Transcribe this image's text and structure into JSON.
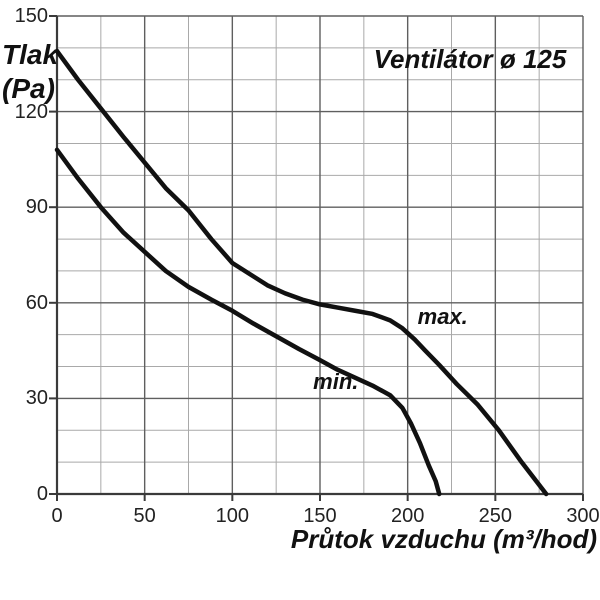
{
  "chart_data": {
    "type": "line",
    "title": "Ventilátor ø 125",
    "ylabel_line1": "Tlak",
    "ylabel_line2": "(Pa)",
    "xlabel": "Průtok vzduchu (m³/hod)",
    "xlim": [
      0,
      300
    ],
    "ylim": [
      0,
      150
    ],
    "xticks": [
      0,
      50,
      100,
      150,
      200,
      250,
      300
    ],
    "yticks": [
      0,
      30,
      60,
      90,
      120,
      150
    ],
    "x_minor_step": 25,
    "y_minor_step": 10,
    "grid": true,
    "legend_position": "inline-labels-on-plot",
    "series": [
      {
        "name": "max.",
        "points": [
          [
            0,
            139
          ],
          [
            12,
            130
          ],
          [
            25,
            121
          ],
          [
            38,
            112
          ],
          [
            50,
            104
          ],
          [
            62,
            96
          ],
          [
            75,
            89
          ],
          [
            88,
            80
          ],
          [
            100,
            72.5
          ],
          [
            110,
            69
          ],
          [
            120,
            65.5
          ],
          [
            130,
            63
          ],
          [
            140,
            61
          ],
          [
            150,
            59.5
          ],
          [
            160,
            58.5
          ],
          [
            170,
            57.5
          ],
          [
            180,
            56.5
          ],
          [
            190,
            54.5
          ],
          [
            197,
            52
          ],
          [
            204,
            48.5
          ],
          [
            210,
            45
          ],
          [
            218,
            40.5
          ],
          [
            228,
            34.5
          ],
          [
            240,
            28
          ],
          [
            252,
            20
          ],
          [
            265,
            10
          ],
          [
            279,
            0
          ]
        ]
      },
      {
        "name": "min.",
        "points": [
          [
            0,
            108
          ],
          [
            12,
            99
          ],
          [
            25,
            90
          ],
          [
            38,
            82
          ],
          [
            50,
            76
          ],
          [
            62,
            70
          ],
          [
            75,
            65
          ],
          [
            88,
            61
          ],
          [
            100,
            57.5
          ],
          [
            112,
            53.5
          ],
          [
            125,
            49.5
          ],
          [
            138,
            45.5
          ],
          [
            150,
            42
          ],
          [
            160,
            39
          ],
          [
            170,
            36.5
          ],
          [
            180,
            34
          ],
          [
            190,
            31
          ],
          [
            197,
            27
          ],
          [
            202,
            22
          ],
          [
            207,
            16
          ],
          [
            212,
            9
          ],
          [
            216,
            4
          ],
          [
            218,
            0
          ]
        ]
      }
    ],
    "annotations": [
      {
        "label": "max.",
        "x": 220,
        "y": 55.5
      },
      {
        "label": "min.",
        "x": 159,
        "y": 35
      }
    ],
    "colors": {
      "background": "#ffffff",
      "curve": "#111111",
      "grid_minor": "#a9a9a9",
      "grid_major": "#5f5f5f",
      "axis": "#3a3a3a",
      "text": "#111111",
      "tick_text": "#222222"
    }
  }
}
